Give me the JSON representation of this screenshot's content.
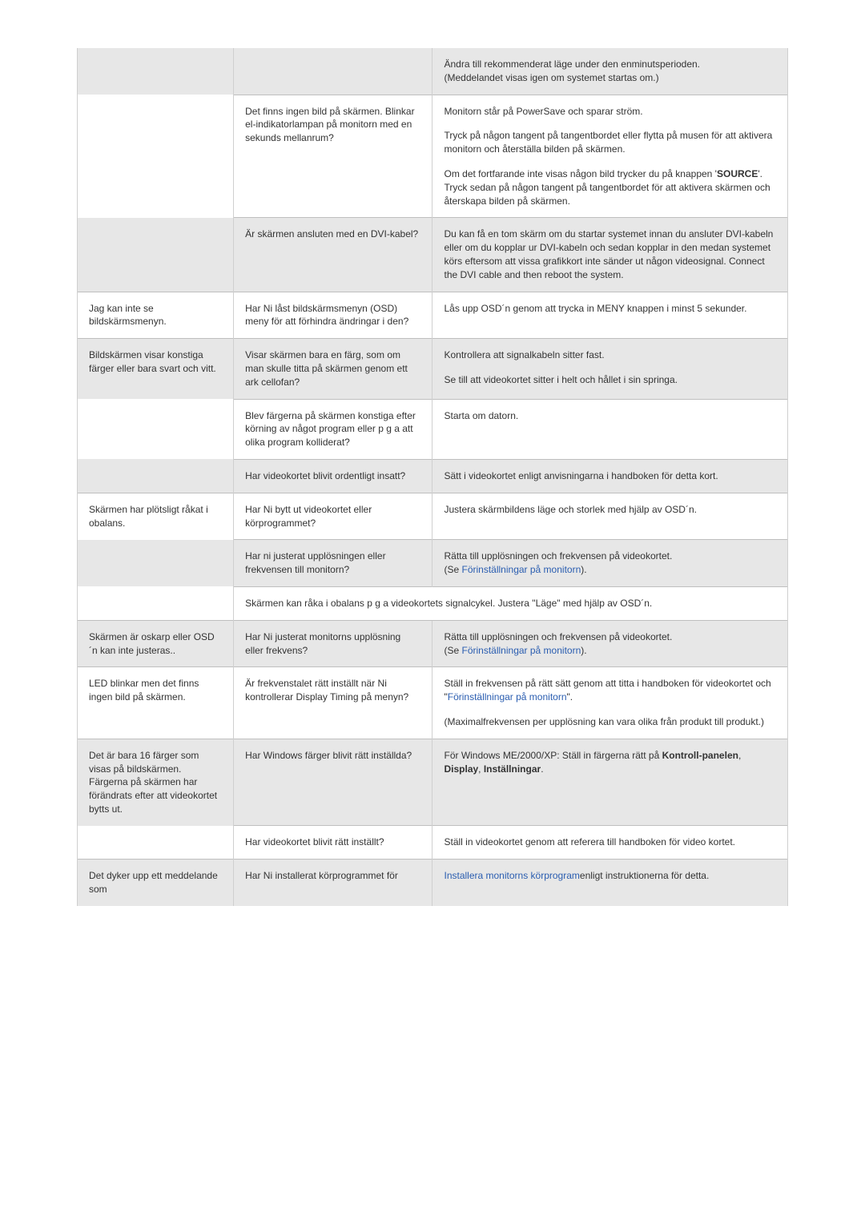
{
  "rows": {
    "r1_col3_p1": "Ändra till rekommenderat läge under den enminutsperioden.",
    "r1_col3_p2": "(Meddelandet visas igen om systemet startas om.)",
    "r2_col2": "Det finns ingen bild på skärmen. Blinkar el-indikatorlampan på monitorn med en sekunds mellanrum?",
    "r2_col3_p1": "Monitorn står på PowerSave och sparar ström.",
    "r2_col3_p2": "Tryck på någon tangent på tangentbordet eller flytta på musen för att aktivera monitorn och återställa bilden på skärmen.",
    "r2_col3_p3a": "Om det fortfarande inte visas någon bild trycker du på knappen '",
    "r2_col3_p3b_bold": "SOURCE",
    "r2_col3_p3c": "'.",
    "r2_col3_p4": "Tryck sedan på någon tangent på tangentbordet för att aktivera skärmen och återskapa bilden på skärmen.",
    "r3_col2": "Är skärmen ansluten med en DVI-kabel?",
    "r3_col3": "Du kan få en tom skärm om du startar systemet innan du ansluter DVI-kabeln eller om du kopplar ur DVI-kabeln och sedan kopplar in den medan systemet körs eftersom att vissa grafikkort inte sänder ut någon videosignal. Connect the DVI cable and then reboot the system.",
    "r4_col1": "Jag kan inte se bildskärmsmenyn.",
    "r4_col2": "Har Ni låst bildskärmsmenyn (OSD) meny för att förhindra ändringar i den?",
    "r4_col3": "Lås upp OSD´n genom att trycka in MENY knappen i minst 5 sekunder.",
    "r5_col1": "Bildskärmen visar konstiga färger eller bara svart och vitt.",
    "r5_col2": "Visar skärmen bara en färg, som om man skulle titta på skärmen genom ett ark cellofan?",
    "r5_col3_p1": "Kontrollera att signalkabeln sitter fast.",
    "r5_col3_p2": "Se till att videokortet sitter i helt och hållet i sin springa.",
    "r6_col2": "Blev färgerna på skärmen konstiga efter körning av något program eller p g a att olika program kolliderat?",
    "r6_col3": "Starta om datorn.",
    "r7_col2": "Har videokortet blivit ordentligt insatt?",
    "r7_col3": "Sätt i videokortet enligt anvisningarna i handboken för detta kort.",
    "r8_col1": "Skärmen har plötsligt råkat i obalans.",
    "r8_col2": "Har Ni bytt ut videokortet eller körprogrammet?",
    "r8_col3": "Justera skärmbildens läge och storlek med hjälp av OSD´n.",
    "r9_col2": "Har ni justerat upplösningen eller frekvensen till monitorn?",
    "r9_col3_p1": "Rätta till upplösningen och frekvensen på videokortet.",
    "r9_col3_p2a": "(Se ",
    "r9_col3_p2_link": "Förinställningar på monitorn",
    "r9_col3_p2c": ").",
    "r10": "Skärmen kan råka i obalans p g a videokortets signalcykel. Justera \"Läge\" med hjälp av OSD´n.",
    "r11_col1": "Skärmen är oskarp eller OSD´n kan inte justeras..",
    "r11_col2": "Har Ni justerat monitorns upplösning eller frekvens?",
    "r11_col3_p1": "Rätta till upplösningen och frekvensen på videokortet.",
    "r11_col3_p2a": "(Se ",
    "r11_col3_p2_link": "Förinställningar på monitorn",
    "r11_col3_p2c": ").",
    "r12_col1": "LED blinkar men det finns ingen bild på skärmen.",
    "r12_col2": "Är frekvenstalet rätt inställt när Ni kontrollerar Display Timing på menyn?",
    "r12_col3_p1a": "Ställ in frekvensen på rätt sätt genom att titta i handboken för videokortet och \"",
    "r12_col3_p1_link": "Förinställningar på monitorn",
    "r12_col3_p1c": "\".",
    "r12_col3_p2": "(Maximalfrekvensen per upplösning kan vara olika från produkt till produkt.)",
    "r13_col1": "Det är bara 16 färger som visas på bildskärmen. Färgerna på skärmen har förändrats efter att videokortet bytts ut.",
    "r13_col2": "Har Windows färger blivit rätt inställda?",
    "r13_col3_p1a": "För Windows ME/2000/XP: Ställ in färgerna rätt på ",
    "r13_col3_p1b_bold": "Kontroll-panelen",
    "r13_col3_p1c": ", ",
    "r13_col3_p1d_bold": "Display",
    "r13_col3_p1e": ", ",
    "r13_col3_p1f_bold": "Inställningar",
    "r13_col3_p1g": ".",
    "r14_col2": "Har videokortet blivit rätt inställt?",
    "r14_col3": "Ställ in videokortet genom att referera till handboken för video kortet.",
    "r15_col1": "Det dyker upp ett meddelande som",
    "r15_col2": "Har Ni installerat körprogrammet för",
    "r15_col3_a_link": "Installera monitorns körprogram",
    "r15_col3_b": "enligt instruktionerna för detta."
  }
}
